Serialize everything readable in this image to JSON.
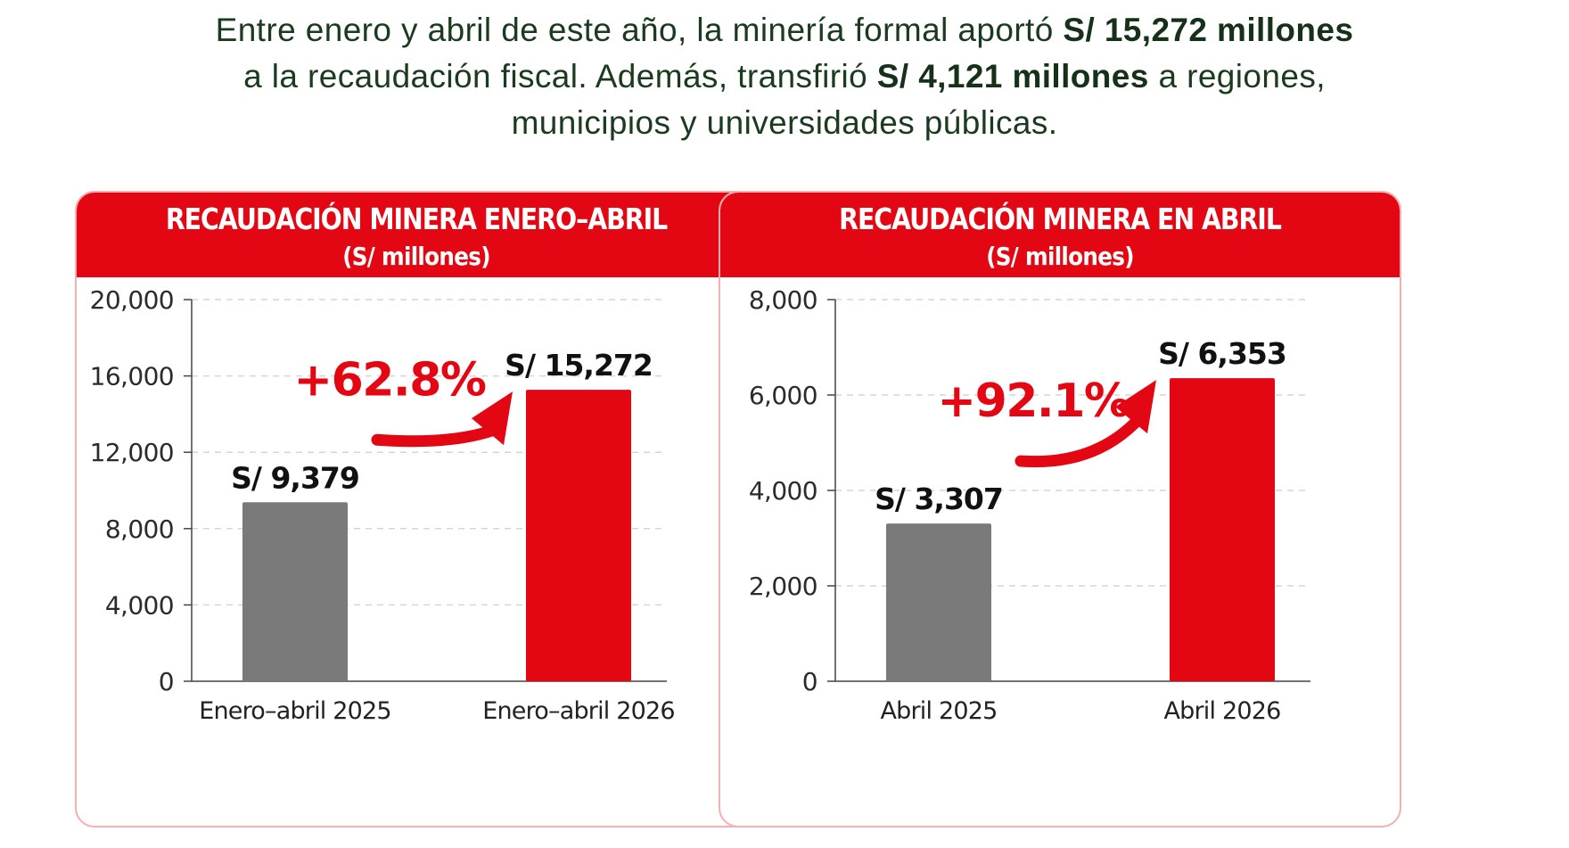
{
  "intro": {
    "line1_a": "Entre enero y abril de este año, la minería formal aportó ",
    "line1_b": "S/ 15,272 millones",
    "line2_a": "a la recaudación fiscal. Además, transfirió ",
    "line2_b": "S/ 4,121 millones",
    "line2_c": " a regiones,",
    "line3": "municipios y universidades públicas."
  },
  "colors": {
    "accent": "#e30613",
    "bar_prev": "#7a7a7a",
    "bar_curr": "#e30613",
    "intro_text": "#1c3a1f"
  },
  "chart_data": [
    {
      "type": "bar",
      "title": "RECAUDACIÓN MINERA ENERO–ABRIL",
      "subtitle": "(S/ millones)",
      "categories": [
        "Enero–abril 2025",
        "Enero–abril 2026"
      ],
      "values": [
        9379,
        15272
      ],
      "data_labels": [
        "S/ 9,379",
        "S/ 15,272"
      ],
      "ylim": [
        0,
        20000
      ],
      "yticks": [
        0,
        4000,
        8000,
        12000,
        16000,
        20000
      ],
      "ytick_labels": [
        "0",
        "4,000",
        "8,000",
        "12,000",
        "16,000",
        "20,000"
      ],
      "annotation": "+62.8%",
      "grid": true
    },
    {
      "type": "bar",
      "title": "RECAUDACIÓN MINERA EN ABRIL",
      "subtitle": "(S/ millones)",
      "categories": [
        "Abril 2025",
        "Abril 2026"
      ],
      "values": [
        3307,
        6353
      ],
      "data_labels": [
        "S/ 3,307",
        "S/ 6,353"
      ],
      "ylim": [
        0,
        8000
      ],
      "yticks": [
        0,
        2000,
        4000,
        6000,
        8000
      ],
      "ytick_labels": [
        "0",
        "2,000",
        "4,000",
        "6,000",
        "8,000"
      ],
      "annotation": "+92.1%",
      "grid": true
    }
  ]
}
